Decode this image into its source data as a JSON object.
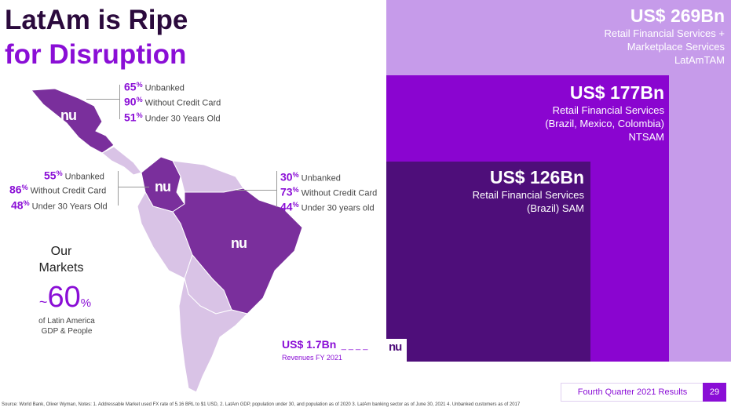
{
  "title": {
    "line1": "LatAm is Ripe",
    "line2": "for Disruption"
  },
  "boxes": {
    "tam": {
      "value": "US$ 269Bn",
      "line1": "Retail Financial Services +",
      "line2": "Marketplace Services",
      "line3": "LatAmTAM"
    },
    "sam_region": {
      "value": "US$ 177Bn",
      "line1": "Retail Financial Services",
      "line2": "(Brazil, Mexico, Colombia)",
      "line3": "NTSAM"
    },
    "sam_brazil": {
      "value": "US$ 126Bn",
      "line1": "Retail Financial Services",
      "line2": "(Brazil) SAM"
    }
  },
  "mexico": {
    "s1": {
      "num": "65",
      "sup": "%",
      "label": "Unbanked"
    },
    "s2": {
      "num": "90",
      "sup": "%",
      "label": "Without Credit Card"
    },
    "s3": {
      "num": "51",
      "sup": "%",
      "label": "Under 30 Years Old"
    }
  },
  "colombia": {
    "s1": {
      "num": "55",
      "sup": "%",
      "label": "Unbanked"
    },
    "s2": {
      "num": "86",
      "sup": "%",
      "label": "Without Credit Card"
    },
    "s3": {
      "num": "48",
      "sup": "%",
      "label": "Under 30 Years Old"
    }
  },
  "brazil": {
    "s1": {
      "num": "30",
      "sup": "%",
      "label": "Unbanked"
    },
    "s2": {
      "num": "73",
      "sup": "%",
      "label": "Without Credit Card"
    },
    "s3": {
      "num": "44",
      "sup": "%",
      "label": "Under 30 years old"
    }
  },
  "markets": {
    "line1": "Our",
    "line2": "Markets",
    "tilde": "~",
    "value": "60",
    "unit": "%",
    "sub1": "of Latin America",
    "sub2": "GDP & People"
  },
  "revenue": {
    "value": "US$ 1.7Bn",
    "dashes": "_ _ _ _",
    "label": "Revenues FY 2021"
  },
  "logo_text": "nu",
  "footer": {
    "label": "Fourth Quarter 2021 Results",
    "page": "29"
  },
  "source": "Source: World Bank, Oliver Wyman, Notes: 1. Addressable Market used FX rate of 5.16 BRL to $1 USD, 2. LatAm GDP, population under 30, and population as of 2020 3. LatAm banking sector as of June 30, 2021 4. Unbanked customers as of 2017",
  "colors": {
    "accent": "#8a0ed6",
    "tam": "#c69bea",
    "sam_region": "#8a05d0",
    "sam_brazil": "#4e0e7a"
  }
}
